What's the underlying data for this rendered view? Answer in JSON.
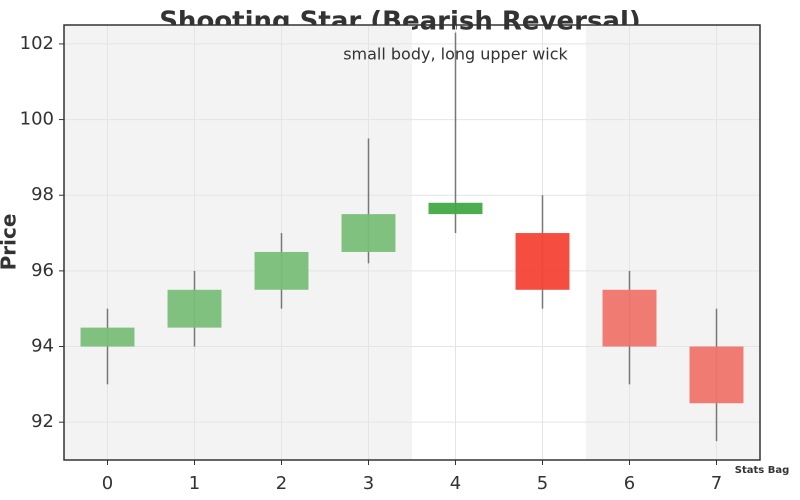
{
  "chart_data": {
    "type": "candlestick",
    "title": "Shooting Star (Bearish Reversal)",
    "annotation": "small body, long upper wick",
    "annotation_x": 4,
    "y_label": "Price",
    "watermark": "Stats Bag",
    "x": [
      0,
      1,
      2,
      3,
      4,
      5,
      6,
      7
    ],
    "open": [
      94,
      94.5,
      95.5,
      96.5,
      97.5,
      97,
      95.5,
      94
    ],
    "high": [
      95,
      96,
      97,
      99.5,
      102.3,
      98,
      96,
      95
    ],
    "low": [
      93,
      94,
      95,
      96.2,
      97,
      95,
      93,
      91.5
    ],
    "close": [
      94.5,
      95.5,
      96.5,
      97.5,
      97.8,
      95.5,
      94,
      92.5
    ],
    "colors": [
      "#79be79",
      "#79be79",
      "#79be79",
      "#79be79",
      "#43a843",
      "#f44336",
      "#ee746b",
      "#ee746b"
    ],
    "shaded_regions": [
      [
        -0.5,
        3.5
      ],
      [
        5.5,
        7.5
      ]
    ],
    "shade_color": "#f3f3f3",
    "xlim": [
      -0.5,
      7.5
    ],
    "ylim": [
      91,
      102.5
    ],
    "xticks": [
      0,
      1,
      2,
      3,
      4,
      5,
      6,
      7
    ],
    "yticks": [
      92,
      94,
      96,
      98,
      100,
      102
    ],
    "grid": true
  }
}
